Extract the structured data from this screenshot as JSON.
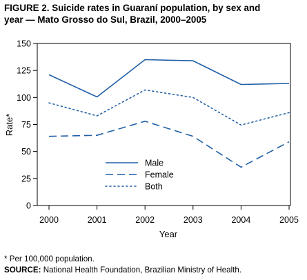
{
  "title_line1": "FIGURE 2. Suicide rates in Guaraní population, by sex and",
  "title_line2": "year — Mato Grosso do Sul, Brazil, 2000–2005",
  "footnote": "* Per 100,000 population.",
  "source_label": "SOURCE:",
  "source_text": " National Health Foundation, Brazilian Ministry of Health.",
  "chart_data": {
    "type": "line",
    "x": [
      2000,
      2001,
      2002,
      2003,
      2004,
      2005
    ],
    "series": [
      {
        "name": "Male",
        "values": [
          121,
          100.5,
          135,
          134,
          112,
          113
        ],
        "style": "solid"
      },
      {
        "name": "Female",
        "values": [
          64,
          65,
          78,
          64,
          35.5,
          59
        ],
        "style": "dashed"
      },
      {
        "name": "Both",
        "values": [
          95,
          83,
          107,
          100,
          74.5,
          86
        ],
        "style": "dotted"
      }
    ],
    "xlabel": "Year",
    "ylabel": "Rate*",
    "ylim": [
      0,
      150
    ],
    "yticks": [
      0,
      25,
      50,
      75,
      100,
      125,
      150
    ],
    "xticks": [
      "2000",
      "2001",
      "2002",
      "2003",
      "2004",
      "2005"
    ],
    "legend_position": "lower-center-left",
    "grid": false,
    "line_color": "#1f5fa6"
  }
}
